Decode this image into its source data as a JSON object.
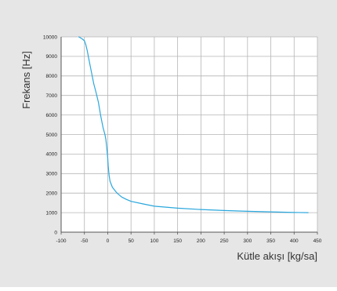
{
  "colors": {
    "background": "#e6e6e6",
    "plot_background": "#ffffff",
    "grid": "#b5b5b5",
    "axis": "#555555",
    "series": "#2aa7dd"
  },
  "chart_data": {
    "type": "line",
    "title": "",
    "xlabel": "Kütle akışı [kg/sa]",
    "ylabel": "Frekans [Hz]",
    "xlim": [
      -100,
      450
    ],
    "ylim": [
      0,
      10000
    ],
    "xticks": [
      -100,
      -50,
      0,
      50,
      100,
      150,
      200,
      250,
      300,
      350,
      400,
      450
    ],
    "yticks": [
      0,
      1000,
      2000,
      3000,
      4000,
      5000,
      6000,
      7000,
      8000,
      9000,
      10000
    ],
    "grid": true,
    "legend": "none",
    "series": [
      {
        "x": [
          -62,
          -55,
          -50,
          -47,
          -44,
          -40,
          -35,
          -30,
          -25,
          -20,
          -15,
          -10,
          -6,
          -4,
          -2,
          0,
          1,
          3,
          5,
          10,
          15,
          20,
          30,
          40,
          50,
          75,
          100,
          150,
          200,
          250,
          300,
          350,
          400,
          430
        ],
        "y": [
          10000,
          9900,
          9800,
          9600,
          9300,
          8800,
          8200,
          7600,
          7150,
          6650,
          5950,
          5350,
          5000,
          4750,
          4300,
          3800,
          3400,
          2900,
          2600,
          2300,
          2150,
          2000,
          1800,
          1680,
          1580,
          1450,
          1330,
          1230,
          1160,
          1110,
          1070,
          1040,
          1010,
          1000
        ]
      }
    ]
  }
}
